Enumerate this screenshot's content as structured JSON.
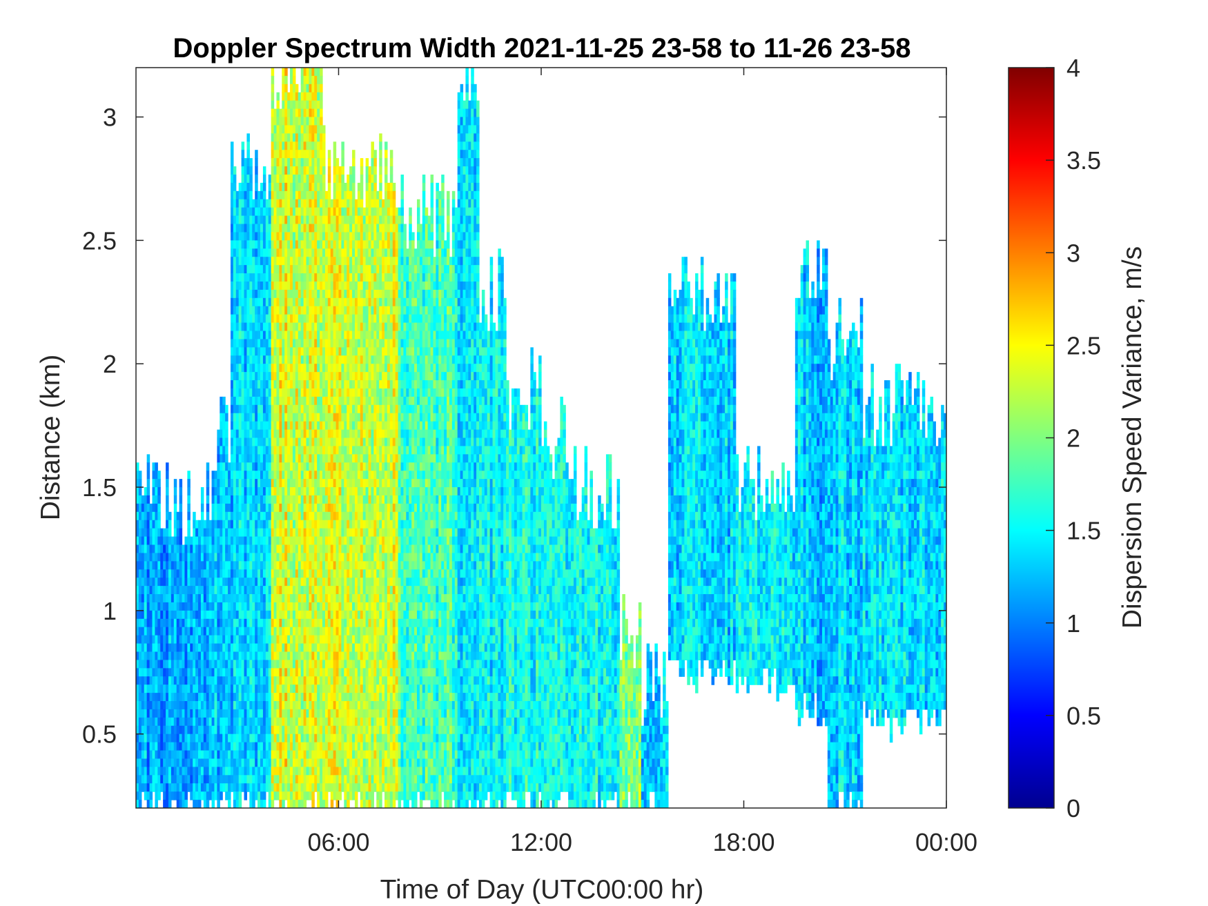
{
  "chart_data": {
    "type": "heatmap",
    "title": "Doppler Spectrum Width 2021-11-25 23-58 to 11-26 23-58",
    "xlabel": "Time of Day (UTC00:00 hr)",
    "ylabel": "Distance (km)",
    "colorbar_label": "Dispersion Speed Variance, m/s",
    "colormap": "jet",
    "xlim_hours": [
      0,
      24
    ],
    "ylim": [
      0.2,
      3.2
    ],
    "clim": [
      0,
      4
    ],
    "x_ticks": [
      {
        "value": 6,
        "label": "06:00"
      },
      {
        "value": 12,
        "label": "12:00"
      },
      {
        "value": 18,
        "label": "18:00"
      },
      {
        "value": 24,
        "label": "00:00"
      }
    ],
    "y_ticks": [
      {
        "value": 0.5,
        "label": "0.5"
      },
      {
        "value": 1,
        "label": "1"
      },
      {
        "value": 1.5,
        "label": "1.5"
      },
      {
        "value": 2,
        "label": "2"
      },
      {
        "value": 2.5,
        "label": "2.5"
      },
      {
        "value": 3,
        "label": "3"
      }
    ],
    "colorbar_ticks": [
      {
        "value": 0,
        "label": "0"
      },
      {
        "value": 0.5,
        "label": "0.5"
      },
      {
        "value": 1,
        "label": "1"
      },
      {
        "value": 1.5,
        "label": "1.5"
      },
      {
        "value": 2,
        "label": "2"
      },
      {
        "value": 2.5,
        "label": "2.5"
      },
      {
        "value": 3,
        "label": "3"
      },
      {
        "value": 3.5,
        "label": "3.5"
      },
      {
        "value": 4,
        "label": "4"
      }
    ],
    "regions": [
      {
        "t0": 0.0,
        "t1": 0.5,
        "top": 1.55,
        "v": 1.2,
        "spread": 0.3
      },
      {
        "t0": 0.5,
        "t1": 2.2,
        "top": 1.45,
        "v": 1.15,
        "spread": 0.3
      },
      {
        "t0": 2.2,
        "t1": 2.8,
        "top": 1.7,
        "v": 1.3,
        "spread": 0.3
      },
      {
        "t0": 2.8,
        "t1": 4.0,
        "top": 2.8,
        "v": 1.35,
        "spread": 0.3
      },
      {
        "t0": 4.0,
        "t1": 5.5,
        "top": 3.2,
        "v": 2.35,
        "spread": 0.4
      },
      {
        "t0": 5.5,
        "t1": 7.8,
        "top": 2.8,
        "v": 2.3,
        "spread": 0.35
      },
      {
        "t0": 7.8,
        "t1": 9.5,
        "top": 2.6,
        "v": 1.75,
        "spread": 0.35
      },
      {
        "t0": 9.5,
        "t1": 10.2,
        "top": 3.2,
        "v": 1.45,
        "spread": 0.3
      },
      {
        "t0": 10.2,
        "t1": 11.0,
        "top": 2.3,
        "v": 1.5,
        "spread": 0.3
      },
      {
        "t0": 11.0,
        "t1": 12.0,
        "top": 1.9,
        "v": 1.55,
        "spread": 0.3
      },
      {
        "t0": 12.0,
        "t1": 13.0,
        "top": 1.7,
        "v": 1.5,
        "spread": 0.3
      },
      {
        "t0": 13.0,
        "t1": 14.3,
        "top": 1.5,
        "v": 1.55,
        "spread": 0.3
      },
      {
        "t0": 14.3,
        "t1": 15.0,
        "top": 0.9,
        "v": 2.0,
        "spread": 0.35
      },
      {
        "t0": 15.0,
        "t1": 15.8,
        "top": 0.7,
        "v": 1.3,
        "spread": 0.3
      },
      {
        "t0": 15.8,
        "t1": 17.8,
        "top": 2.3,
        "bottom": 0.75,
        "v": 1.35,
        "spread": 0.3
      },
      {
        "t0": 17.8,
        "t1": 19.5,
        "top": 1.5,
        "bottom": 0.7,
        "v": 1.45,
        "spread": 0.3
      },
      {
        "t0": 19.5,
        "t1": 20.5,
        "top": 2.4,
        "bottom": 0.6,
        "v": 1.3,
        "spread": 0.3
      },
      {
        "t0": 20.5,
        "t1": 21.5,
        "top": 2.1,
        "bottom": 0.2,
        "v": 1.35,
        "spread": 0.3
      },
      {
        "t0": 21.5,
        "t1": 24.0,
        "top": 1.85,
        "bottom": 0.55,
        "v": 1.4,
        "spread": 0.3
      }
    ]
  }
}
